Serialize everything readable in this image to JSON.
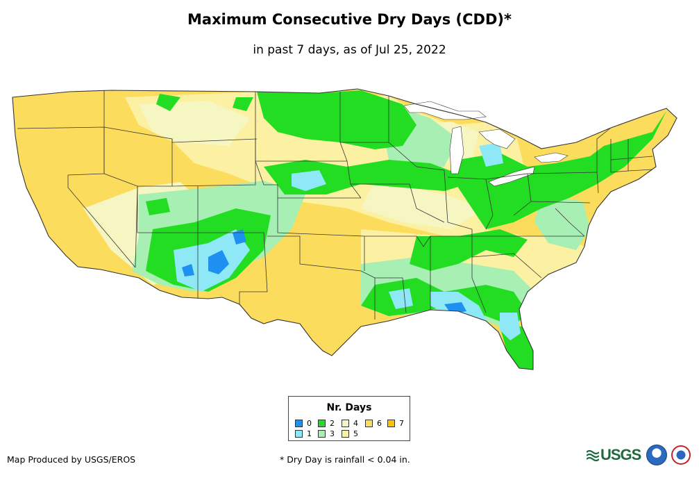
{
  "title": "Maximum Consecutive Dry Days (CDD)*",
  "subtitle": "in past 7 days, as of Jul 25, 2022",
  "legend": {
    "title": "Nr. Days",
    "items": [
      {
        "label": "0",
        "color": "#1e90f0"
      },
      {
        "label": "1",
        "color": "#8fe8f5"
      },
      {
        "label": "2",
        "color": "#22dd22"
      },
      {
        "label": "3",
        "color": "#a8efb4"
      },
      {
        "label": "4",
        "color": "#f6f6c2"
      },
      {
        "label": "5",
        "color": "#fcf0a2"
      },
      {
        "label": "6",
        "color": "#fcdc5c"
      },
      {
        "label": "7",
        "color": "#fcc400"
      }
    ]
  },
  "credit": "Map Produced by USGS/EROS",
  "footnote": "* Dry Day is rainfall < 0.04 in.",
  "logos": {
    "usgs": "USGS"
  }
}
